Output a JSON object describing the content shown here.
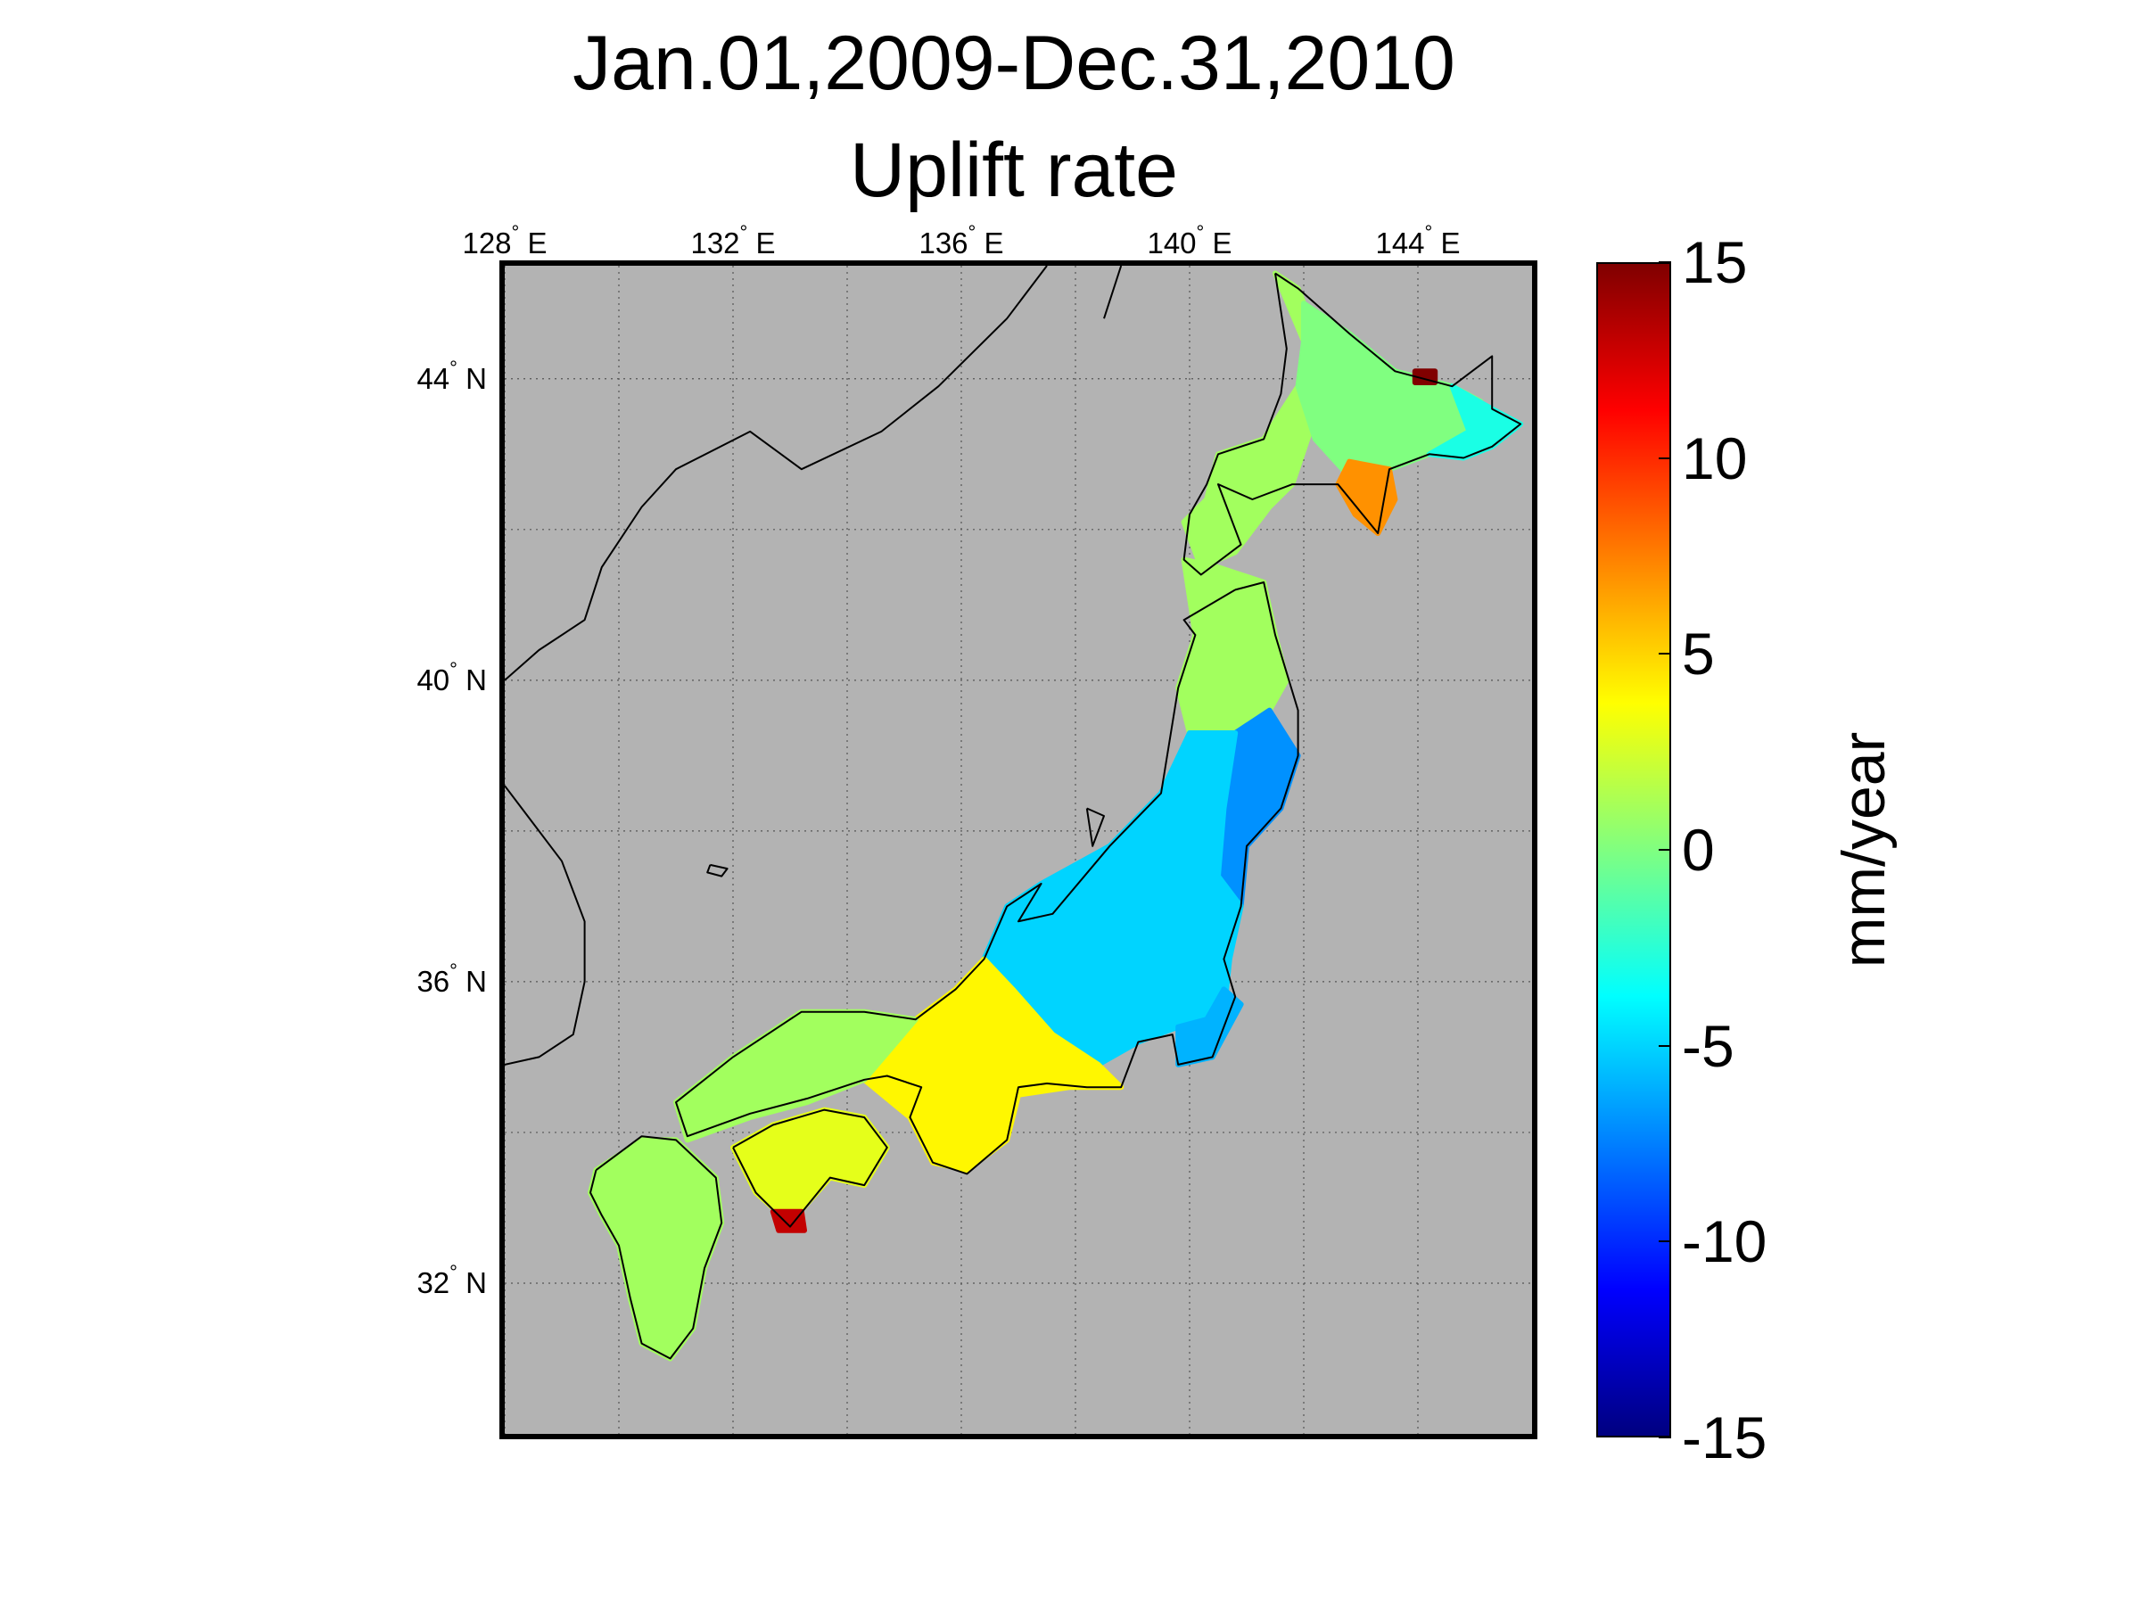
{
  "title": {
    "line1": "Jan.01,2009-Dec.31,2010",
    "line2": "Uplift rate"
  },
  "map": {
    "background_color": "#b3b3b3",
    "coast_color": "#000000",
    "grid_style": "dotted",
    "lon_labels": [
      {
        "deg": "128",
        "hemi": "E"
      },
      {
        "deg": "132",
        "hemi": "E"
      },
      {
        "deg": "136",
        "hemi": "E"
      },
      {
        "deg": "140",
        "hemi": "E"
      },
      {
        "deg": "144",
        "hemi": "E"
      }
    ],
    "lat_labels": [
      {
        "deg": "44",
        "hemi": "N"
      },
      {
        "deg": "40",
        "hemi": "N"
      },
      {
        "deg": "36",
        "hemi": "N"
      },
      {
        "deg": "32",
        "hemi": "N"
      }
    ],
    "lon_range": [
      128,
      146
    ],
    "lat_range": [
      30,
      45.5
    ]
  },
  "colorbar": {
    "label": "mm/year",
    "ticks": [
      "15",
      "10",
      "5",
      "0",
      "-5",
      "-10",
      "-15"
    ],
    "range": [
      -15,
      15
    ],
    "colormap": "jet"
  },
  "regions": [
    {
      "name": "hokkaido-west",
      "value": 1
    },
    {
      "name": "hokkaido-central",
      "value": 0
    },
    {
      "name": "hokkaido-south-cape",
      "value": 7
    },
    {
      "name": "hokkaido-east",
      "value": -3
    },
    {
      "name": "hokkaido-northeast-spot",
      "value": 15
    },
    {
      "name": "tohoku-north",
      "value": 1
    },
    {
      "name": "tohoku-east",
      "value": -7
    },
    {
      "name": "kanto-chubu",
      "value": -5
    },
    {
      "name": "boso",
      "value": -6
    },
    {
      "name": "kinki-tokai",
      "value": 4
    },
    {
      "name": "chugoku",
      "value": 1
    },
    {
      "name": "shikoku",
      "value": 3
    },
    {
      "name": "muroto-cape",
      "value": 13
    },
    {
      "name": "kyushu",
      "value": 1
    }
  ]
}
